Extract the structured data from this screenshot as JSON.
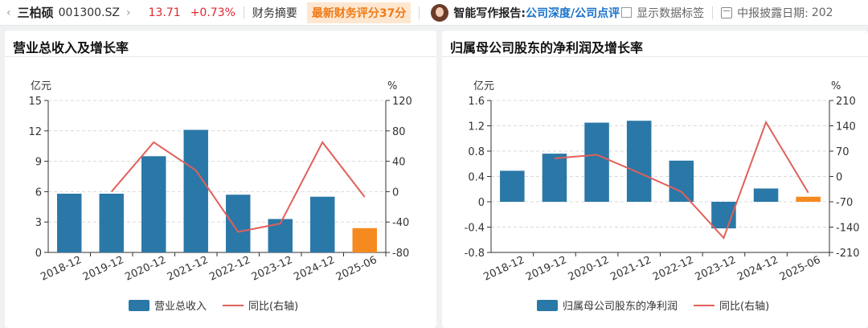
{
  "topbar": {
    "back_icon": "chevron-left",
    "stock_name": "三柏硕",
    "stock_code": "001300.SZ",
    "forward_icon": "chevron-right",
    "price": "13.71",
    "change": "+0.73%",
    "financial_summary": "财务摘要",
    "score_badge": "最新财务评分37分",
    "smart_report_label": "智能写作报告:",
    "report_link_depth": "公司深度/",
    "report_link_review": "公司点评",
    "show_data_label": "显示数据标签",
    "disclosure_label": "中报披露日期:",
    "disclosure_value": "202"
  },
  "colors": {
    "bar": "#2a78a7",
    "bar_highlight": "#f58a1f",
    "line": "#e0605a",
    "grid": "#d9d9d9"
  },
  "chart_data": [
    {
      "type": "bar",
      "title": "营业总收入及增长率",
      "categories": [
        "2018-12",
        "2019-12",
        "2020-12",
        "2021-12",
        "2022-12",
        "2023-12",
        "2024-12",
        "2025-06"
      ],
      "left_axis_unit": "亿元",
      "right_axis_unit": "%",
      "ylim": [
        0,
        15
      ],
      "y_ticks": [
        "15",
        "12",
        "9",
        "6",
        "3",
        "0"
      ],
      "y2lim": [
        -80,
        120
      ],
      "y2_ticks": [
        "120",
        "80",
        "40",
        "0",
        "-40",
        "-80"
      ],
      "series": [
        {
          "name": "营业总收入",
          "kind": "bar",
          "values": [
            5.8,
            5.8,
            9.5,
            12.1,
            5.7,
            3.3,
            5.5,
            2.4
          ],
          "highlight_last": true
        },
        {
          "name": "同比(右轴)",
          "kind": "line",
          "axis": "right",
          "values": [
            null,
            0,
            65,
            28,
            -53,
            -42,
            65,
            -7
          ]
        }
      ]
    },
    {
      "type": "bar",
      "title": "归属母公司股东的净利润及增长率",
      "categories": [
        "2018-12",
        "2019-12",
        "2020-12",
        "2021-12",
        "2022-12",
        "2023-12",
        "2024-12",
        "2025-06"
      ],
      "left_axis_unit": "亿元",
      "right_axis_unit": "%",
      "ylim": [
        -0.8,
        1.6
      ],
      "y_ticks": [
        "1.6",
        "1.2",
        "0.8",
        "0.4",
        "0",
        "-0.4",
        "-0.8"
      ],
      "y2lim": [
        -210,
        210
      ],
      "y2_ticks": [
        "210",
        "140",
        "70",
        "0",
        "-70",
        "-140",
        "-210"
      ],
      "series": [
        {
          "name": "归属母公司股东的净利润",
          "kind": "bar",
          "values": [
            0.49,
            0.76,
            1.25,
            1.28,
            0.65,
            -0.42,
            0.21,
            0.08
          ],
          "highlight_last": true
        },
        {
          "name": "同比(右轴)",
          "kind": "line",
          "axis": "right",
          "values": [
            null,
            50,
            60,
            10,
            -42,
            -170,
            150,
            -45
          ]
        }
      ]
    }
  ]
}
